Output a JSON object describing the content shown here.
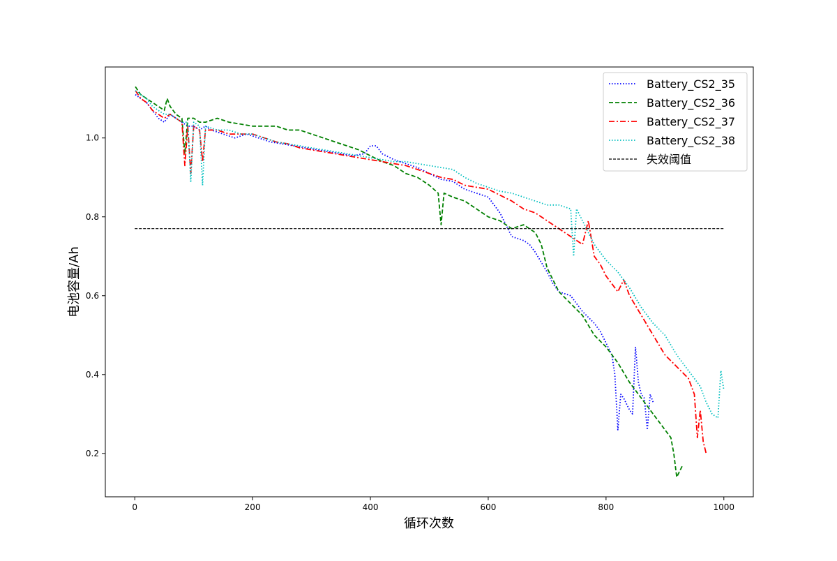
{
  "chart_data": {
    "type": "line",
    "xlabel": "循环次数",
    "ylabel": "电池容量/Ah",
    "xlim": [
      -50,
      1050
    ],
    "ylim": [
      0.09,
      1.18
    ],
    "xticks": [
      0,
      200,
      400,
      600,
      800,
      1000
    ],
    "yticks": [
      0.2,
      0.4,
      0.6,
      0.8,
      1.0
    ],
    "xtick_labels": [
      "0",
      "200",
      "400",
      "600",
      "800",
      "1000"
    ],
    "ytick_labels": [
      "0.2",
      "0.4",
      "0.6",
      "0.8",
      "1.0"
    ],
    "grid": false,
    "legend_position": "top-right",
    "series": [
      {
        "name": "Battery_CS2_35",
        "color": "#0000ff",
        "style": "dotted",
        "x": [
          1,
          10,
          20,
          30,
          40,
          50,
          60,
          70,
          80,
          90,
          100,
          110,
          120,
          130,
          150,
          170,
          190,
          210,
          230,
          250,
          270,
          290,
          310,
          330,
          350,
          370,
          390,
          400,
          410,
          420,
          440,
          460,
          480,
          500,
          520,
          540,
          560,
          580,
          600,
          620,
          630,
          640,
          660,
          670,
          680,
          700,
          710,
          720,
          740,
          760,
          780,
          790,
          800,
          810,
          815,
          820,
          825,
          830,
          840,
          845,
          850,
          855,
          860,
          865,
          870,
          875,
          880
        ],
        "y": [
          1.11,
          1.1,
          1.09,
          1.07,
          1.05,
          1.04,
          1.06,
          1.05,
          1.04,
          1.03,
          1.03,
          1.02,
          1.03,
          1.02,
          1.01,
          1.0,
          1.01,
          1.0,
          0.99,
          0.985,
          0.98,
          0.975,
          0.97,
          0.965,
          0.96,
          0.955,
          0.96,
          0.98,
          0.98,
          0.96,
          0.945,
          0.935,
          0.925,
          0.91,
          0.895,
          0.89,
          0.87,
          0.86,
          0.85,
          0.81,
          0.78,
          0.75,
          0.74,
          0.73,
          0.71,
          0.66,
          0.63,
          0.61,
          0.6,
          0.56,
          0.53,
          0.51,
          0.48,
          0.45,
          0.4,
          0.26,
          0.35,
          0.34,
          0.31,
          0.3,
          0.47,
          0.38,
          0.35,
          0.34,
          0.26,
          0.35,
          0.33
        ]
      },
      {
        "name": "Battery_CS2_36",
        "color": "#008000",
        "style": "dashed",
        "x": [
          1,
          10,
          20,
          30,
          40,
          50,
          55,
          60,
          70,
          80,
          85,
          90,
          100,
          110,
          120,
          140,
          160,
          180,
          200,
          220,
          240,
          260,
          280,
          300,
          320,
          340,
          360,
          380,
          400,
          420,
          440,
          460,
          480,
          500,
          515,
          520,
          525,
          540,
          560,
          580,
          600,
          620,
          640,
          660,
          680,
          690,
          700,
          710,
          720,
          740,
          760,
          780,
          800,
          820,
          840,
          850,
          860,
          870,
          880,
          890,
          900,
          910,
          915,
          920,
          930
        ],
        "y": [
          1.13,
          1.11,
          1.1,
          1.09,
          1.08,
          1.07,
          1.1,
          1.08,
          1.06,
          1.05,
          0.96,
          1.05,
          1.05,
          1.04,
          1.04,
          1.05,
          1.04,
          1.035,
          1.03,
          1.03,
          1.03,
          1.02,
          1.02,
          1.01,
          1.0,
          0.99,
          0.98,
          0.97,
          0.955,
          0.94,
          0.93,
          0.91,
          0.9,
          0.88,
          0.86,
          0.78,
          0.86,
          0.85,
          0.84,
          0.82,
          0.8,
          0.79,
          0.77,
          0.78,
          0.76,
          0.73,
          0.67,
          0.64,
          0.61,
          0.58,
          0.55,
          0.5,
          0.47,
          0.43,
          0.38,
          0.36,
          0.34,
          0.32,
          0.3,
          0.28,
          0.26,
          0.24,
          0.2,
          0.14,
          0.17
        ]
      },
      {
        "name": "Battery_CS2_37",
        "color": "#ff0000",
        "style": "dashdot",
        "x": [
          1,
          10,
          20,
          30,
          40,
          50,
          60,
          70,
          80,
          85,
          90,
          95,
          100,
          110,
          115,
          120,
          140,
          160,
          180,
          200,
          220,
          240,
          260,
          280,
          300,
          320,
          340,
          360,
          380,
          400,
          420,
          440,
          460,
          480,
          500,
          520,
          540,
          560,
          580,
          600,
          620,
          640,
          660,
          680,
          700,
          720,
          740,
          760,
          770,
          780,
          790,
          800,
          810,
          820,
          830,
          840,
          860,
          880,
          900,
          920,
          940,
          950,
          955,
          960,
          965,
          970
        ],
        "y": [
          1.12,
          1.1,
          1.09,
          1.07,
          1.06,
          1.05,
          1.06,
          1.05,
          1.04,
          0.93,
          1.03,
          0.91,
          1.03,
          1.02,
          0.94,
          1.02,
          1.02,
          1.01,
          1.01,
          1.01,
          1.0,
          0.99,
          0.985,
          0.975,
          0.97,
          0.965,
          0.96,
          0.955,
          0.95,
          0.945,
          0.94,
          0.935,
          0.93,
          0.92,
          0.91,
          0.9,
          0.895,
          0.88,
          0.875,
          0.87,
          0.855,
          0.84,
          0.82,
          0.81,
          0.79,
          0.77,
          0.75,
          0.73,
          0.79,
          0.7,
          0.68,
          0.65,
          0.63,
          0.61,
          0.64,
          0.6,
          0.55,
          0.5,
          0.45,
          0.42,
          0.39,
          0.35,
          0.24,
          0.31,
          0.23,
          0.2
        ]
      },
      {
        "name": "Battery_CS2_38",
        "color": "#00bfbf",
        "style": "dotted",
        "x": [
          1,
          10,
          20,
          30,
          40,
          50,
          60,
          70,
          80,
          90,
          95,
          100,
          110,
          115,
          120,
          140,
          160,
          180,
          200,
          220,
          240,
          260,
          280,
          300,
          320,
          340,
          360,
          380,
          400,
          420,
          440,
          460,
          480,
          500,
          520,
          540,
          560,
          580,
          600,
          620,
          640,
          660,
          680,
          700,
          720,
          740,
          745,
          750,
          760,
          780,
          800,
          820,
          840,
          860,
          880,
          900,
          920,
          940,
          960,
          970,
          980,
          990,
          995,
          1000
        ],
        "y": [
          1.12,
          1.11,
          1.1,
          1.08,
          1.07,
          1.06,
          1.06,
          1.05,
          1.04,
          1.04,
          0.89,
          1.04,
          1.03,
          0.88,
          1.03,
          1.02,
          1.02,
          1.01,
          1.01,
          1.0,
          0.99,
          0.985,
          0.98,
          0.975,
          0.97,
          0.965,
          0.96,
          0.955,
          0.95,
          0.945,
          0.94,
          0.94,
          0.935,
          0.93,
          0.925,
          0.92,
          0.9,
          0.885,
          0.875,
          0.865,
          0.86,
          0.85,
          0.84,
          0.83,
          0.83,
          0.82,
          0.7,
          0.82,
          0.79,
          0.73,
          0.69,
          0.66,
          0.62,
          0.57,
          0.53,
          0.5,
          0.45,
          0.41,
          0.37,
          0.33,
          0.3,
          0.29,
          0.41,
          0.36
        ]
      },
      {
        "name": "失效阈值",
        "color": "#000000",
        "style": "dashed-thin",
        "x": [
          0,
          1000
        ],
        "y": [
          0.77,
          0.77
        ]
      }
    ]
  }
}
